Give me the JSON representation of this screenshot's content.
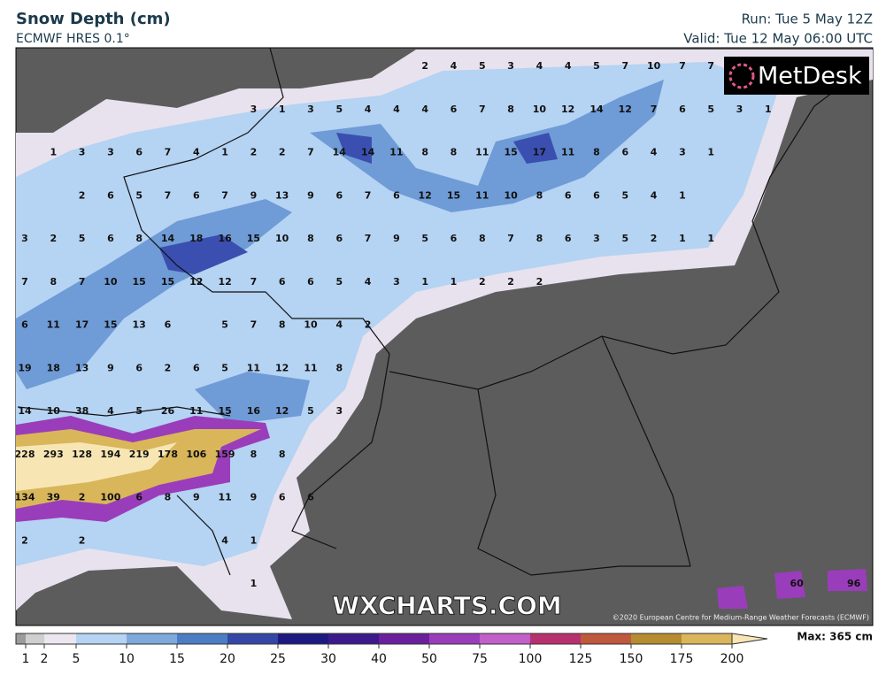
{
  "header": {
    "title": "Snow Depth (cm)",
    "subtitle": "ECMWF HRES 0.1°",
    "run": "Run: Tue 5 May 12Z",
    "valid": "Valid: Tue 12 May 06:00 UTC"
  },
  "logo": "MetDesk",
  "watermark": "WXCHARTS.COM",
  "copyright": "©2020 European Centre for Medium-Range Weather Forecasts (ECMWF)",
  "map_labels": [
    [
      null,
      null,
      null,
      null,
      null,
      null,
      null,
      null,
      null,
      null,
      null,
      null,
      null,
      null,
      2,
      4,
      5,
      3,
      4,
      4,
      5,
      7,
      10,
      7,
      7
    ],
    [
      null,
      null,
      null,
      null,
      null,
      null,
      null,
      null,
      3,
      1,
      3,
      5,
      4,
      4,
      4,
      6,
      7,
      8,
      10,
      12,
      14,
      12,
      7,
      6,
      5,
      3,
      1
    ],
    [
      null,
      1,
      3,
      3,
      6,
      7,
      4,
      1,
      2,
      2,
      7,
      14,
      14,
      11,
      8,
      8,
      11,
      15,
      17,
      11,
      8,
      6,
      4,
      3,
      1
    ],
    [
      null,
      null,
      2,
      6,
      5,
      7,
      6,
      7,
      9,
      13,
      9,
      6,
      7,
      6,
      12,
      15,
      11,
      10,
      8,
      6,
      6,
      5,
      4,
      1
    ],
    [
      3,
      2,
      5,
      6,
      8,
      14,
      18,
      16,
      15,
      10,
      8,
      6,
      7,
      9,
      5,
      6,
      8,
      7,
      8,
      6,
      3,
      5,
      2,
      1,
      1
    ],
    [
      7,
      8,
      7,
      10,
      15,
      15,
      12,
      12,
      7,
      6,
      6,
      5,
      4,
      3,
      1,
      1,
      2,
      2,
      2
    ],
    [
      6,
      11,
      17,
      15,
      13,
      6,
      null,
      5,
      7,
      8,
      10,
      4,
      2
    ],
    [
      19,
      18,
      13,
      9,
      6,
      2,
      6,
      5,
      11,
      12,
      11,
      8
    ],
    [
      14,
      10,
      38,
      4,
      5,
      26,
      11,
      15,
      16,
      12,
      5,
      3
    ],
    [
      228,
      293,
      128,
      194,
      219,
      178,
      106,
      159,
      8,
      8
    ],
    [
      134,
      39,
      2,
      100,
      6,
      8,
      9,
      11,
      9,
      6,
      6
    ],
    [
      2,
      null,
      2,
      null,
      null,
      null,
      null,
      4,
      1
    ],
    [
      null,
      null,
      null,
      null,
      null,
      null,
      null,
      null,
      1,
      null,
      null,
      null,
      null,
      null,
      null,
      null,
      null,
      null,
      null,
      null,
      null,
      null,
      null,
      null,
      null,
      null,
      null,
      60,
      null,
      96
    ]
  ],
  "legend": {
    "levels": [
      1,
      2,
      5,
      10,
      15,
      20,
      25,
      30,
      40,
      50,
      75,
      100,
      125,
      150,
      175,
      200
    ],
    "colors": [
      "#9b9b9b",
      "#cfcfcf",
      "#ece6f0",
      "#b5d3f2",
      "#7ea9dd",
      "#4c7cc4",
      "#3547a6",
      "#1c1a80",
      "#3c1a8a",
      "#6a1f9c",
      "#9a3dba",
      "#c25fc8",
      "#b8306e",
      "#c0583e",
      "#b58d2f",
      "#d9b65a",
      "#f7e6b4"
    ],
    "max": "Max: 365 cm"
  }
}
